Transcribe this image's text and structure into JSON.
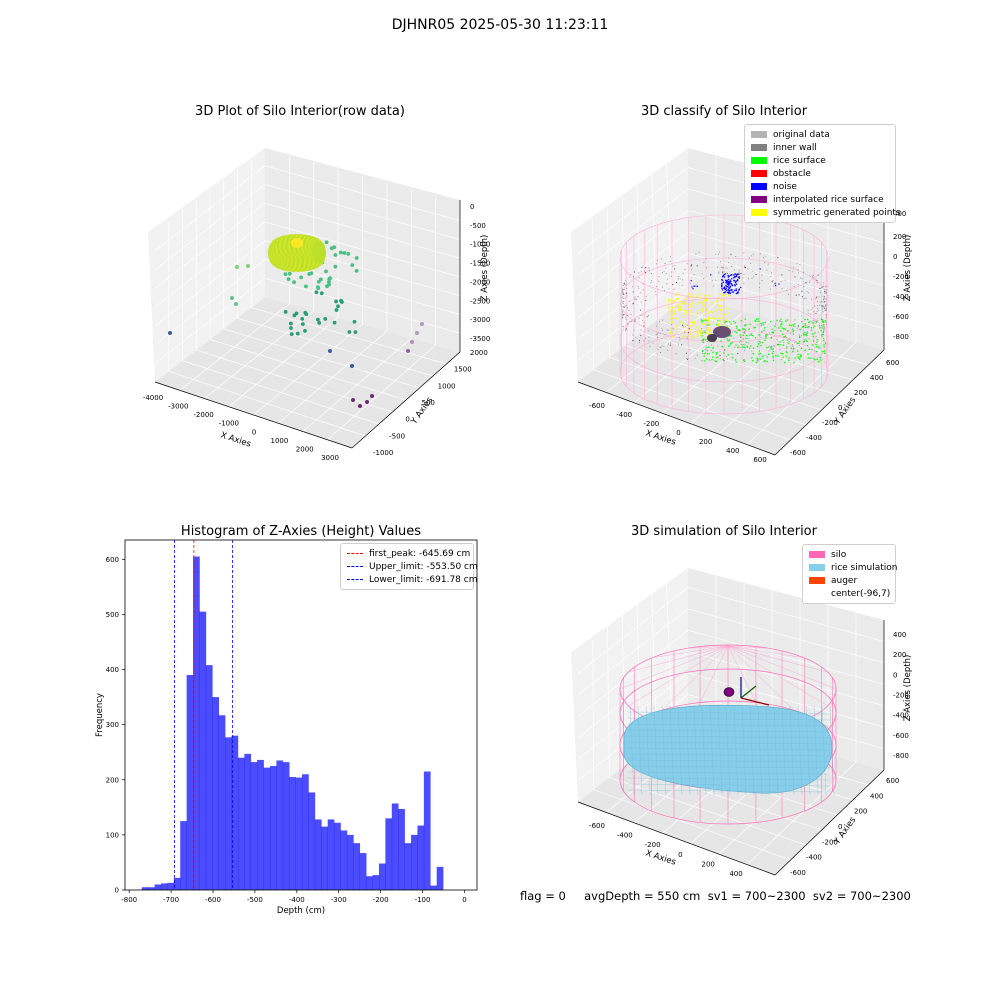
{
  "figure": {
    "suptitle": "DJHNR05 2025-05-30 11:23:11",
    "status_line": "flag = 0     avgDepth = 550 cm  sv1 = 700~2300  sv2 = 700~2300"
  },
  "panels": {
    "raw3d": {
      "title": "3D Plot of Silo Interior(row data)",
      "xlabel": "X Axies",
      "ylabel": "Y Axies",
      "zlabel": "Z Axies (Depth)",
      "xticks": [
        "-4000",
        "-3000",
        "-2000",
        "-1000",
        "0",
        "1000",
        "2000",
        "3000"
      ],
      "yticks": [
        "-1000",
        "-500",
        "0",
        "500",
        "1000",
        "1500",
        "2000"
      ],
      "zticks": [
        "0",
        "-500",
        "-1000",
        "-1500",
        "-2000",
        "-2500",
        "-3000",
        "-3500"
      ]
    },
    "classify3d": {
      "title": "3D classify of Silo Interior",
      "xlabel": "X Axies",
      "ylabel": "Y Axies",
      "zlabel": "Z Axies (Depth)",
      "xticks": [
        "-600",
        "-400",
        "-200",
        "0",
        "200",
        "400",
        "600"
      ],
      "yticks": [
        "-600",
        "-400",
        "-200",
        "0",
        "200",
        "400",
        "600"
      ],
      "zticks": [
        "200",
        "0",
        "-200",
        "-400",
        "-600",
        "-800"
      ],
      "ztop": "400",
      "legend": [
        {
          "label": "original data",
          "color": "#b3b3b3"
        },
        {
          "label": "inner wall",
          "color": "#808080"
        },
        {
          "label": "rice surface",
          "color": "#00ff00"
        },
        {
          "label": "obstacle",
          "color": "#ff0000"
        },
        {
          "label": "noise",
          "color": "#0000ff"
        },
        {
          "label": "interpolated rice surface",
          "color": "#800080"
        },
        {
          "label": "symmetric generated points",
          "color": "#ffff00"
        }
      ]
    },
    "simulation3d": {
      "title": "3D simulation of Silo Interior",
      "xlabel": "X Axies",
      "ylabel": "Y Axies",
      "zlabel": "Z Axies (Depth)",
      "xticks": [
        "-600",
        "-400",
        "-200",
        "0",
        "200",
        "400"
      ],
      "yticks": [
        "-600",
        "-400",
        "-200",
        "0",
        "200",
        "400",
        "600"
      ],
      "zticks": [
        "400",
        "200",
        "0",
        "-200",
        "-400",
        "-600",
        "-800"
      ],
      "legend": [
        {
          "label": "silo",
          "color": "#ff69b4"
        },
        {
          "label": "rice simulation",
          "color": "#87ceeb"
        },
        {
          "label": "auger",
          "color": "#ff4500"
        },
        {
          "label": "center(-96,7)",
          "color": ""
        }
      ]
    }
  },
  "chart_data": [
    {
      "type": "bar",
      "title": "Histogram of Z-Axies (Height) Values",
      "xlabel": "Depth (cm)",
      "ylabel": "Frequency",
      "xlim": [
        -810,
        30
      ],
      "ylim": [
        0,
        635
      ],
      "xticks": [
        -800,
        -700,
        -600,
        -500,
        -400,
        -300,
        -200,
        -100,
        0
      ],
      "yticks": [
        0,
        100,
        200,
        300,
        400,
        500,
        600
      ],
      "bar_color": "#0000ff",
      "bins": {
        "start": -770,
        "width": 15.3,
        "counts": [
          5,
          5,
          10,
          12,
          13,
          22,
          125,
          390,
          605,
          505,
          408,
          350,
          317,
          277,
          280,
          240,
          247,
          232,
          236,
          222,
          225,
          235,
          232,
          205,
          204,
          210,
          177,
          128,
          115,
          128,
          122,
          108,
          100,
          85,
          67,
          25,
          27,
          48,
          130,
          157,
          147,
          85,
          100,
          117,
          215,
          8,
          42
        ]
      },
      "vlines": [
        {
          "label": "first_peak: -645.69 cm",
          "x": -645.69,
          "color": "#ff0000"
        },
        {
          "label": "Upper_limit: -553.50 cm",
          "x": -553.5,
          "color": "#0000ff"
        },
        {
          "label": "Lower_limit: -691.78 cm",
          "x": -691.78,
          "color": "#0000ff"
        }
      ],
      "legend_position": "upper right"
    }
  ]
}
